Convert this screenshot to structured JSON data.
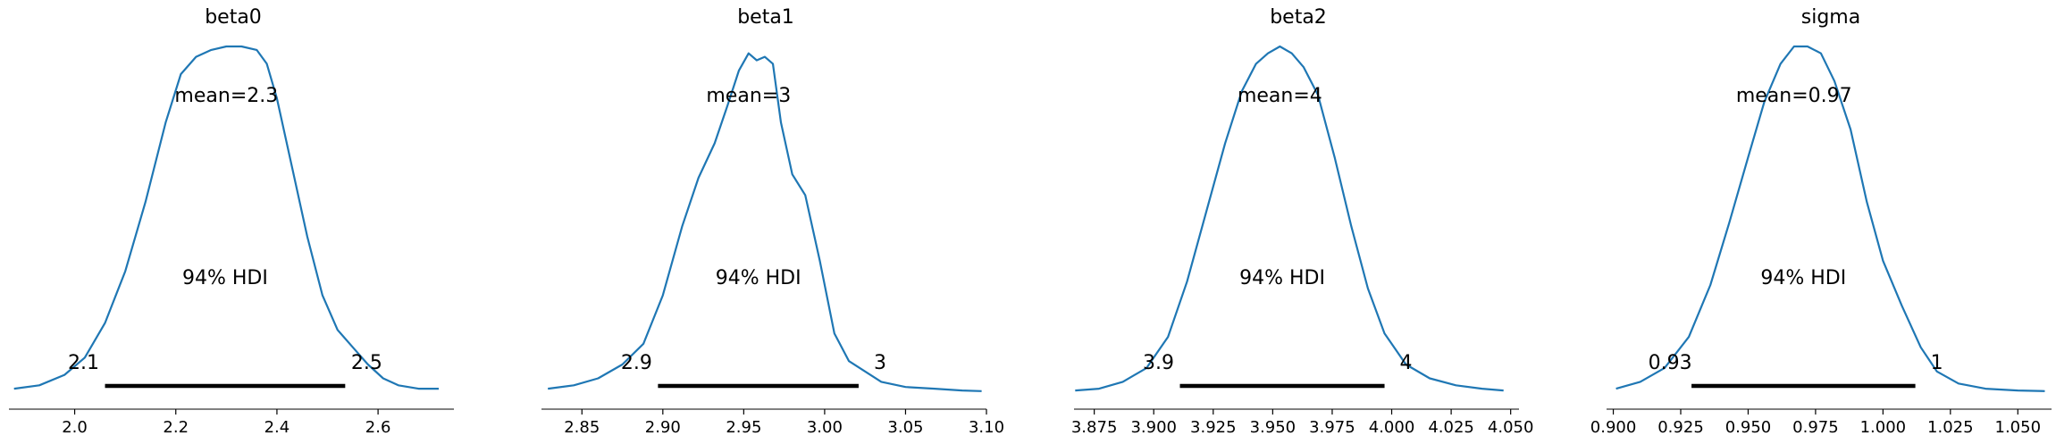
{
  "colors": {
    "density_line": "#1f77b4",
    "hdi_bar": "#000000",
    "axis": "#000000",
    "background": "#ffffff"
  },
  "chart_data": [
    {
      "type": "line",
      "title": "beta0",
      "mean_label": "mean=2.3",
      "hdi_label": "94% HDI",
      "hdi": {
        "low": 2.06,
        "high": 2.535,
        "low_label": "2.1",
        "high_label": "2.5"
      },
      "xlim": [
        1.87,
        2.75
      ],
      "xticks": [
        2.0,
        2.2,
        2.4,
        2.6
      ],
      "xtick_labels": [
        "2.0",
        "2.2",
        "2.4",
        "2.6"
      ],
      "x": [
        1.88,
        1.93,
        1.98,
        2.02,
        2.06,
        2.1,
        2.14,
        2.18,
        2.21,
        2.24,
        2.27,
        2.3,
        2.33,
        2.36,
        2.38,
        2.4,
        2.43,
        2.46,
        2.49,
        2.52,
        2.55,
        2.58,
        2.61,
        2.64,
        2.68,
        2.72
      ],
      "density": [
        0.01,
        0.02,
        0.05,
        0.1,
        0.2,
        0.35,
        0.55,
        0.78,
        0.92,
        0.97,
        0.99,
        1.0,
        1.0,
        0.99,
        0.95,
        0.85,
        0.65,
        0.45,
        0.28,
        0.18,
        0.13,
        0.08,
        0.04,
        0.02,
        0.01,
        0.01
      ],
      "grid": false
    },
    {
      "type": "line",
      "title": "beta1",
      "mean_label": "mean=3",
      "hdi_label": "94% HDI",
      "hdi": {
        "low": 2.897,
        "high": 3.021,
        "low_label": "2.9",
        "high_label": "3"
      },
      "xlim": [
        2.825,
        3.1
      ],
      "xticks": [
        2.85,
        2.9,
        2.95,
        3.0,
        3.05,
        3.1
      ],
      "xtick_labels": [
        "2.85",
        "2.90",
        "2.95",
        "3.00",
        "3.05",
        "3.10"
      ],
      "x": [
        2.829,
        2.845,
        2.86,
        2.875,
        2.888,
        2.9,
        2.912,
        2.922,
        2.932,
        2.94,
        2.947,
        2.953,
        2.958,
        2.963,
        2.968,
        2.973,
        2.98,
        2.988,
        2.997,
        3.006,
        3.015,
        3.025,
        3.035,
        3.05,
        3.068,
        3.085,
        3.097
      ],
      "density": [
        0.01,
        0.02,
        0.04,
        0.08,
        0.14,
        0.28,
        0.48,
        0.62,
        0.72,
        0.83,
        0.93,
        0.98,
        0.96,
        0.97,
        0.95,
        0.78,
        0.63,
        0.57,
        0.38,
        0.17,
        0.09,
        0.06,
        0.03,
        0.015,
        0.01,
        0.005,
        0.003
      ],
      "grid": false
    },
    {
      "type": "line",
      "title": "beta2",
      "mean_label": "mean=4",
      "hdi_label": "94% HDI",
      "hdi": {
        "low": 3.911,
        "high": 3.997,
        "low_label": "3.9",
        "high_label": "4"
      },
      "xlim": [
        3.8665,
        4.0535
      ],
      "xticks": [
        3.875,
        3.9,
        3.925,
        3.95,
        3.975,
        4.0,
        4.025,
        4.05
      ],
      "xtick_labels": [
        "3.875",
        "3.900",
        "3.925",
        "3.950",
        "3.975",
        "4.000",
        "4.025",
        "4.050"
      ],
      "x": [
        3.867,
        3.877,
        3.887,
        3.897,
        3.906,
        3.914,
        3.922,
        3.93,
        3.937,
        3.943,
        3.948,
        3.953,
        3.958,
        3.963,
        3.969,
        3.976,
        3.983,
        3.99,
        3.997,
        4.006,
        4.016,
        4.027,
        4.038,
        4.047
      ],
      "density": [
        0.005,
        0.01,
        0.03,
        0.07,
        0.16,
        0.32,
        0.52,
        0.72,
        0.87,
        0.95,
        0.98,
        1.0,
        0.98,
        0.94,
        0.86,
        0.68,
        0.48,
        0.3,
        0.17,
        0.08,
        0.04,
        0.02,
        0.01,
        0.005
      ],
      "grid": false
    },
    {
      "type": "line",
      "title": "sigma",
      "mean_label": "mean=0.97",
      "hdi_label": "94% HDI",
      "hdi": {
        "low": 0.929,
        "high": 1.012,
        "low_label": "0.93",
        "high_label": "1"
      },
      "xlim": [
        0.8975,
        1.0625
      ],
      "xticks": [
        0.9,
        0.925,
        0.95,
        0.975,
        1.0,
        1.025,
        1.05
      ],
      "xtick_labels": [
        "0.900",
        "0.925",
        "0.950",
        "0.975",
        "1.000",
        "1.025",
        "1.050"
      ],
      "x": [
        0.901,
        0.91,
        0.919,
        0.928,
        0.936,
        0.943,
        0.95,
        0.956,
        0.962,
        0.967,
        0.972,
        0.977,
        0.982,
        0.988,
        0.994,
        1.0,
        1.007,
        1.014,
        1.02,
        1.028,
        1.038,
        1.05,
        1.06
      ],
      "density": [
        0.01,
        0.03,
        0.07,
        0.16,
        0.31,
        0.49,
        0.68,
        0.84,
        0.95,
        1.0,
        1.0,
        0.98,
        0.9,
        0.76,
        0.55,
        0.38,
        0.25,
        0.13,
        0.06,
        0.025,
        0.01,
        0.005,
        0.003
      ],
      "grid": false
    }
  ]
}
